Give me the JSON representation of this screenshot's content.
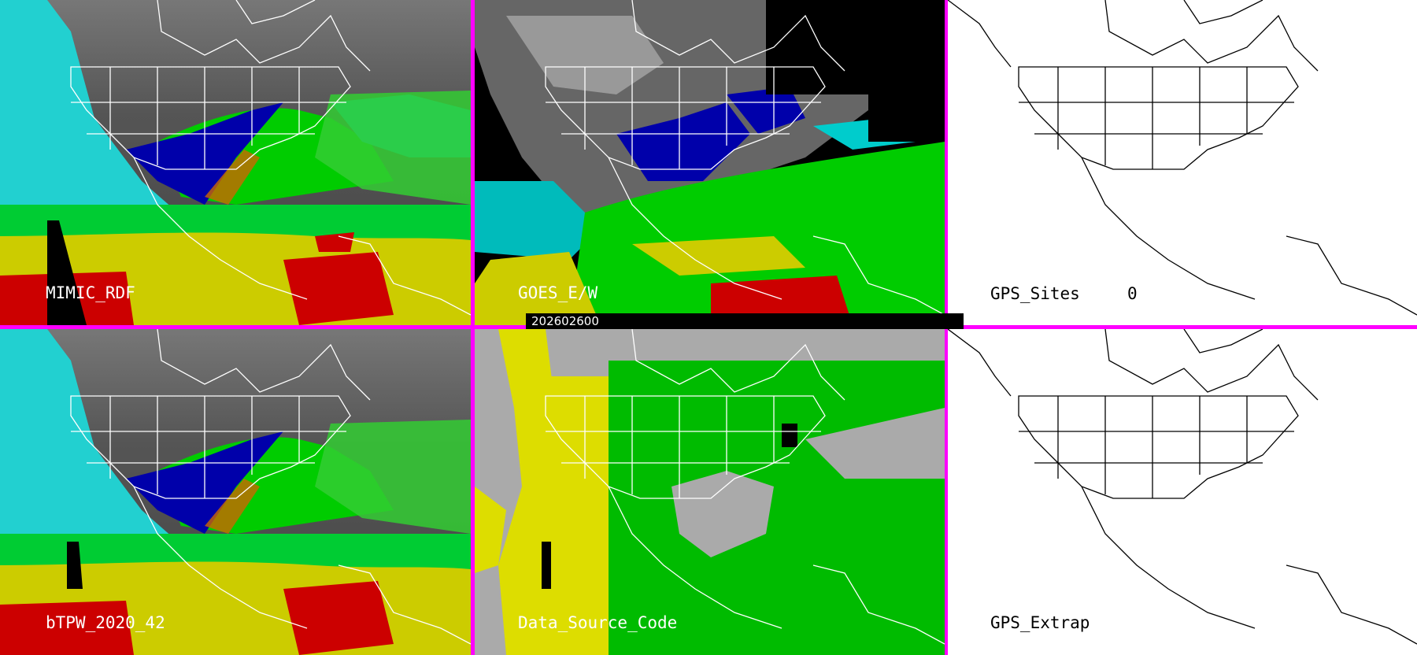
{
  "panels": [
    {
      "id": "mimic-rdf",
      "label": "MIMIC_RDF"
    },
    {
      "id": "goes-ew",
      "label": "GOES_E/W"
    },
    {
      "id": "gps-sites",
      "label": "GPS_Sites",
      "count": "0"
    },
    {
      "id": "btpw",
      "label": "bTPW_2020_42"
    },
    {
      "id": "data-source-code",
      "label": "Data_Source_Code"
    },
    {
      "id": "gps-extrap",
      "label": "GPS_Extrap"
    }
  ],
  "timestamp": "202602600",
  "colors": {
    "border": "#ff00ff",
    "dry": "#00cccc",
    "mid": "#0000aa",
    "moist": "#00cc00",
    "humid": "#dddd00",
    "wet": "#cc0000",
    "gray_scale": "#666666",
    "source_green": "#00bb00",
    "source_yellow": "#dddd00",
    "source_gray": "#aaaaaa"
  }
}
